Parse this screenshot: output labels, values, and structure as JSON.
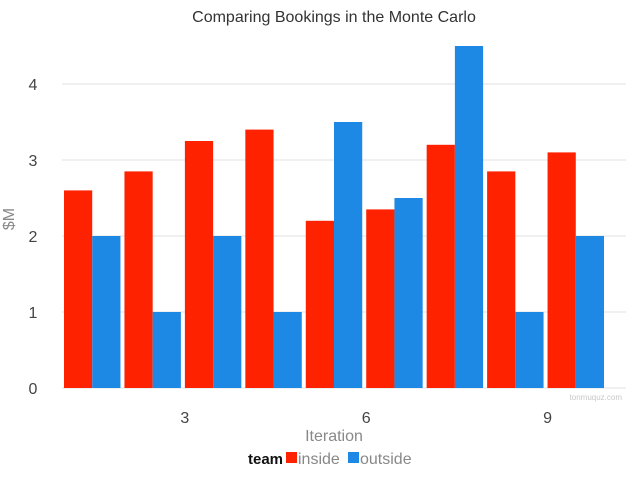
{
  "chart_data": {
    "type": "bar",
    "title": "Comparing Bookings in the Monte Carlo",
    "xlabel": "Iteration",
    "ylabel": "$M",
    "x": [
      1,
      2,
      3,
      4,
      5,
      6,
      7,
      8,
      9
    ],
    "x_tick_labels": [
      "3",
      "6",
      "9"
    ],
    "x_ticks": [
      3,
      6,
      9
    ],
    "y_ticks": [
      0,
      1,
      2,
      3,
      4
    ],
    "ylim": [
      0,
      4.5
    ],
    "grid": true,
    "legend_title": "team",
    "legend_position": "bottom",
    "series": [
      {
        "name": "inside",
        "color": "#ff2200",
        "values": [
          2.6,
          2.85,
          3.25,
          3.4,
          2.2,
          2.35,
          3.2,
          2.85,
          3.1
        ]
      },
      {
        "name": "outside",
        "color": "#1e88e5",
        "values": [
          2.0,
          1.0,
          2.0,
          1.0,
          3.5,
          2.5,
          4.5,
          1.0,
          2.0
        ]
      }
    ]
  },
  "watermark": "tonmuquz.com"
}
